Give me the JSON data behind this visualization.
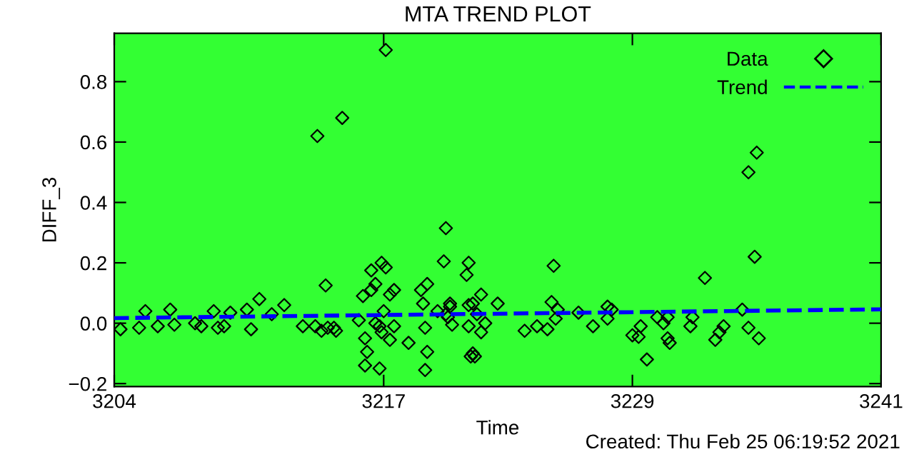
{
  "chart_data": {
    "type": "scatter",
    "title": "MTA TREND PLOT",
    "xlabel": "Time",
    "ylabel": "DIFF_3",
    "xlim": [
      3204,
      3241
    ],
    "xticks": [
      3204,
      3217,
      3229,
      3241
    ],
    "ylim": [
      -0.21,
      0.96
    ],
    "yticks": [
      {
        "value": -0.2,
        "label": "−0.2"
      },
      {
        "value": 0.0,
        "label": "0.0"
      },
      {
        "value": 0.2,
        "label": "0.2"
      },
      {
        "value": 0.4,
        "label": "0.4"
      },
      {
        "value": 0.6,
        "label": "0.6"
      },
      {
        "value": 0.8,
        "label": "0.8"
      }
    ],
    "grid": false,
    "legend": "top right",
    "annotations": [
      "Created: Thu Feb 25 06:19:52 2021"
    ],
    "series": [
      {
        "name": "Data",
        "color": "#000000",
        "marker": "diamond",
        "x": [
          3204.3,
          3205.2,
          3205.5,
          3206.1,
          3206.7,
          3206.9,
          3207.9,
          3208.2,
          3208.8,
          3209.0,
          3209.3,
          3209.6,
          3210.4,
          3210.6,
          3211.0,
          3211.6,
          3212.2,
          3213.1,
          3213.8,
          3213.7,
          3214.0,
          3214.2,
          3214.3,
          3214.7,
          3215.0,
          3214.6,
          3215.8,
          3216.0,
          3216.1,
          3216.2,
          3216.1,
          3216.4,
          3216.4,
          3216.6,
          3216.8,
          3216.9,
          3217.1,
          3217.1,
          3216.6,
          3216.8,
          3217.0,
          3216.9,
          3217.3,
          3217.3,
          3217.5,
          3217.5,
          3218.2,
          3218.8,
          3219.1,
          3219.0,
          3219.0,
          3218.9,
          3219.1,
          3219.9,
          3220.0,
          3219.6,
          3220.0,
          3220.2,
          3220.1,
          3220.3,
          3221.1,
          3221.0,
          3221.1,
          3221.2,
          3220.2,
          3221.3,
          3221.7,
          3221.5,
          3221.1,
          3221.9,
          3221.7,
          3221.3,
          3221.4,
          3222.5,
          3223.8,
          3224.4,
          3224.9,
          3225.2,
          3225.1,
          3225.4,
          3225.3,
          3226.4,
          3227.1,
          3227.8,
          3228.0,
          3227.8,
          3229.0,
          3229.3,
          3229.4,
          3229.7,
          3230.2,
          3230.5,
          3230.7,
          3230.7,
          3230.8,
          3231.8,
          3231.9,
          3232.5,
          3233.0,
          3233.2,
          3233.4,
          3234.3,
          3234.6,
          3235.0,
          3234.9,
          3234.6,
          3235.1
        ],
        "values": [
          -0.02,
          -0.015,
          0.04,
          -0.01,
          0.045,
          -0.005,
          0.0,
          -0.01,
          0.04,
          -0.015,
          -0.01,
          0.035,
          0.045,
          -0.02,
          0.08,
          0.03,
          0.06,
          -0.01,
          0.62,
          -0.01,
          -0.025,
          0.125,
          -0.015,
          -0.025,
          0.68,
          -0.015,
          0.01,
          0.09,
          -0.05,
          -0.095,
          -0.14,
          0.175,
          0.11,
          0.13,
          -0.15,
          0.2,
          0.905,
          0.185,
          0.0,
          -0.01,
          0.04,
          -0.03,
          0.095,
          -0.055,
          0.11,
          -0.01,
          -0.065,
          0.11,
          -0.095,
          -0.155,
          -0.015,
          0.065,
          0.13,
          0.205,
          0.315,
          0.04,
          0.03,
          0.055,
          0.02,
          -0.005,
          0.2,
          0.16,
          0.06,
          -0.11,
          0.065,
          0.065,
          0.095,
          0.03,
          -0.01,
          0.0,
          -0.03,
          -0.1,
          -0.11,
          0.065,
          -0.025,
          -0.01,
          -0.02,
          0.19,
          0.07,
          0.045,
          0.015,
          0.035,
          -0.01,
          0.055,
          0.045,
          0.015,
          -0.04,
          -0.045,
          -0.01,
          -0.12,
          0.02,
          0.0,
          0.02,
          -0.05,
          -0.065,
          -0.01,
          0.02,
          0.15,
          -0.055,
          -0.03,
          -0.01,
          0.045,
          0.5,
          0.565,
          0.22,
          -0.015,
          -0.05
        ]
      },
      {
        "name": "Trend",
        "type": "line",
        "color": "#0000ff",
        "line_style": "dashed",
        "x": [
          3204,
          3241
        ],
        "values": [
          0.017,
          0.046
        ]
      }
    ]
  }
}
